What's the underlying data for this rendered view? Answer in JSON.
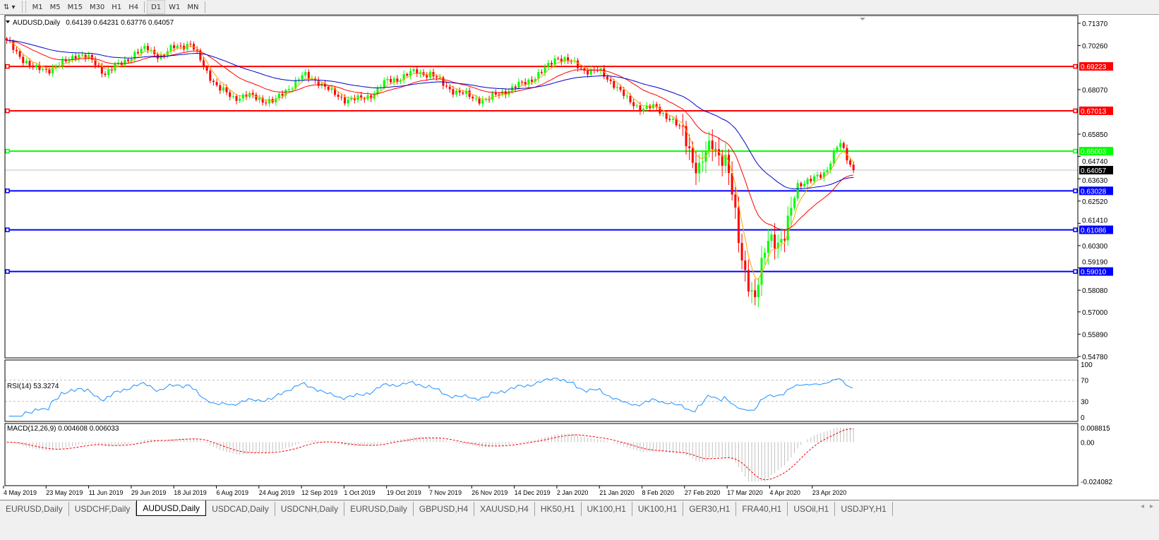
{
  "toolbar": {
    "periods": [
      "M1",
      "M5",
      "M15",
      "M30",
      "H1",
      "H4",
      "D1",
      "W1",
      "MN"
    ],
    "active_period": "D1"
  },
  "chart_data": {
    "type": "candlestick",
    "symbol_title": "AUDUSD,Daily",
    "ohlc_readout": "0.64139 0.64231 0.63776 0.64057",
    "price_axis_ticks": [
      "0.71370",
      "0.70260",
      "0.68070",
      "0.65850",
      "0.64740",
      "0.63630",
      "0.62520",
      "0.61410",
      "0.60300",
      "0.59190",
      "0.58080",
      "0.57000",
      "0.55890",
      "0.54780"
    ],
    "ylim": [
      0.5478,
      0.7137
    ],
    "date_labels": [
      "4 May 2019",
      "23 May 2019",
      "11 Jun 2019",
      "29 Jun 2019",
      "18 Jul 2019",
      "6 Aug 2019",
      "24 Aug 2019",
      "12 Sep 2019",
      "1 Oct 2019",
      "19 Oct 2019",
      "7 Nov 2019",
      "26 Nov 2019",
      "14 Dec 2019",
      "2 Jan 2020",
      "21 Jan 2020",
      "8 Feb 2020",
      "27 Feb 2020",
      "17 Mar 2020",
      "4 Apr 2020",
      "23 Apr 2020"
    ],
    "close_samples": [
      0.7042,
      0.6972,
      0.6905,
      0.691,
      0.6935,
      0.699,
      0.695,
      0.689,
      0.693,
      0.6985,
      0.701,
      0.697,
      0.7025,
      0.7035,
      0.692,
      0.681,
      0.677,
      0.6775,
      0.676,
      0.6745,
      0.682,
      0.6875,
      0.6855,
      0.679,
      0.676,
      0.6755,
      0.679,
      0.685,
      0.687,
      0.6895,
      0.6885,
      0.683,
      0.679,
      0.677,
      0.675,
      0.6795,
      0.6815,
      0.6855,
      0.6895,
      0.6975,
      0.694,
      0.6905,
      0.6895,
      0.684,
      0.675,
      0.6715,
      0.6715,
      0.6665,
      0.6585,
      0.64,
      0.654,
      0.645,
      0.6,
      0.574,
      0.61,
      0.602,
      0.634,
      0.635,
      0.64,
      0.654,
      0.6406
    ],
    "current_price": {
      "value": "0.64057",
      "color": "#000000"
    },
    "horizontal_lines": [
      {
        "value": "0.69223",
        "color": "#ff0000"
      },
      {
        "value": "0.67013",
        "color": "#ff0000"
      },
      {
        "value": "0.65003",
        "color": "#00ff00"
      },
      {
        "value": "0.63028",
        "color": "#0000ff"
      },
      {
        "value": "0.61086",
        "color": "#0000ff"
      },
      {
        "value": "0.59010",
        "color": "#0000ff"
      }
    ],
    "candle_colors": {
      "bull": "#00ff00",
      "bear": "#ff0000"
    },
    "moving_average_colors": [
      "#ffa500",
      "#ff0000",
      "#0000cd"
    ],
    "rsi": {
      "label": "RSI(14) 53.3274",
      "ticks": [
        "100",
        "70",
        "30",
        "0"
      ],
      "levels": [
        70,
        30
      ],
      "ylim": [
        0,
        100
      ],
      "color": "#1e90ff"
    },
    "macd": {
      "label": "MACD(12,26,9) 0.004608 0.006033",
      "ticks": [
        "0.008815",
        "0.00",
        "-0.024082"
      ],
      "ylim": [
        -0.024082,
        0.008815
      ],
      "histogram_color": "#c0c0c0",
      "signal_color": "#ff0000"
    }
  },
  "tabs": {
    "items": [
      "EURUSD,Daily",
      "USDCHF,Daily",
      "AUDUSD,Daily",
      "USDCAD,Daily",
      "USDCNH,Daily",
      "EURUSD,Daily",
      "GBPUSD,H4",
      "XAUUSD,H4",
      "HK50,H1",
      "UK100,H1",
      "UK100,H1",
      "GER30,H1",
      "FRA40,H1",
      "USOil,H1",
      "USDJPY,H1"
    ],
    "active": "AUDUSD,Daily",
    "scroll_left": "◂",
    "scroll_right": "▸"
  }
}
